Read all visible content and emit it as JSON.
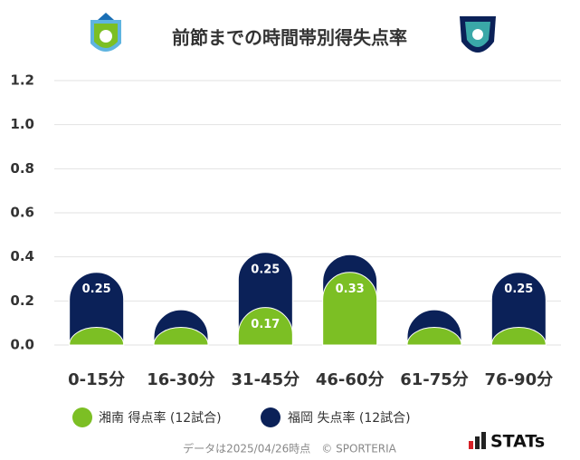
{
  "chart_data": {
    "type": "stacked_bar",
    "title": "前節までの時間帯別得失点率",
    "categories": [
      "0-15分",
      "16-30分",
      "31-45分",
      "46-60分",
      "61-75分",
      "76-90分"
    ],
    "series": [
      {
        "name": "湘南 得点率 (12試合)",
        "color": "#7cbf24",
        "values": [
          0.08,
          0.08,
          0.17,
          0.33,
          0.08,
          0.08
        ]
      },
      {
        "name": "福岡 失点率 (12試合)",
        "color": "#0b2158",
        "values": [
          0.25,
          0.08,
          0.25,
          0.08,
          0.08,
          0.25
        ]
      }
    ],
    "ylim": [
      0,
      1.2
    ],
    "yticks": [
      {
        "value": 0,
        "label": "0.0"
      },
      {
        "value": 0.2,
        "label": "0.2"
      },
      {
        "value": 0.4,
        "label": "0.4"
      },
      {
        "value": 0.6,
        "label": "0.6"
      },
      {
        "value": 0.8,
        "label": "0.8"
      },
      {
        "value": 1,
        "label": "1.0"
      },
      {
        "value": 1.2,
        "label": "1.2"
      }
    ],
    "grid": true
  },
  "footer": {
    "note": "データは2025/04/26時点　© SPORTERIA",
    "brand": "STATs"
  }
}
